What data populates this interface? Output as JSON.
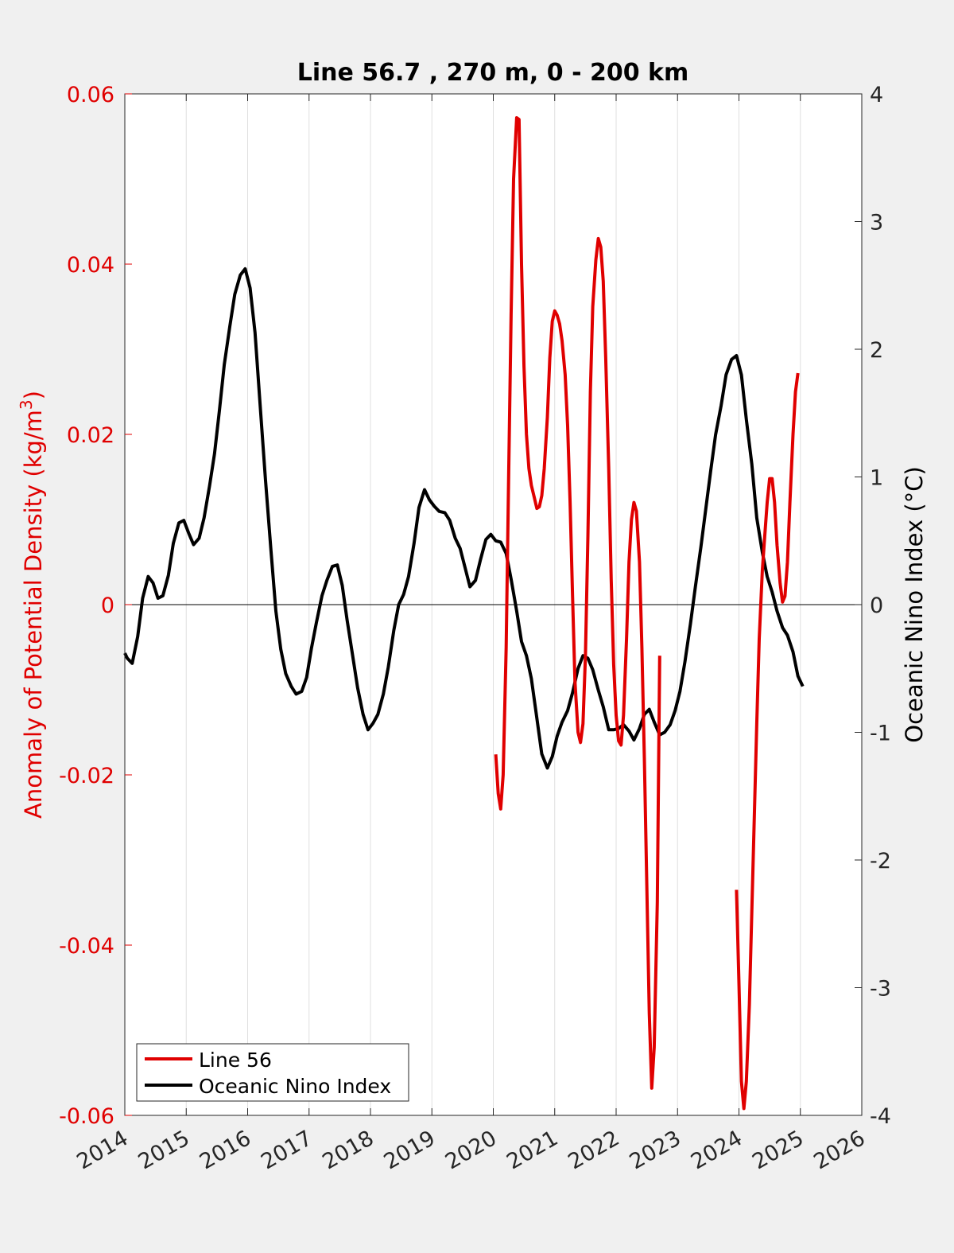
{
  "chart_data": {
    "type": "line",
    "title": "Line 56.7 , 270 m, 0 - 200 km",
    "xlabel": "",
    "ylabel_left": "Anomaly of Potential Density (kg/m",
    "ylabel_left_sup": "3",
    "ylabel_left_close": ")",
    "ylabel_right": "Oceanic Nino Index (°C)",
    "xlim": [
      2014,
      2026
    ],
    "ylim_left": [
      -0.06,
      0.06
    ],
    "ylim_right": [
      -4,
      4
    ],
    "x_ticks": [
      "2014",
      "2015",
      "2016",
      "2017",
      "2018",
      "2019",
      "2020",
      "2021",
      "2022",
      "2023",
      "2024",
      "2025",
      "2026"
    ],
    "y_left_ticks": [
      "-0.06",
      "-0.04",
      "-0.02",
      "0",
      "0.02",
      "0.04",
      "0.06"
    ],
    "y_right_ticks": [
      "-4",
      "-3",
      "-2",
      "-1",
      "0",
      "1",
      "2",
      "3",
      "4"
    ],
    "grid": "vertical",
    "legend_position": "bottom-left",
    "colors": {
      "left_axis": "#e00000",
      "line56": "#e00000",
      "oni": "#000000"
    },
    "series": [
      {
        "name": "Line 56",
        "axis": "left",
        "segments": [
          [
            [
              2020.04,
              -0.0176
            ],
            [
              2020.08,
              -0.0222
            ],
            [
              2020.12,
              -0.024
            ],
            [
              2020.16,
              -0.02
            ],
            [
              2020.21,
              -0.005
            ],
            [
              2020.25,
              0.015
            ],
            [
              2020.29,
              0.034
            ],
            [
              2020.33,
              0.05
            ],
            [
              2020.38,
              0.0572
            ],
            [
              2020.42,
              0.057
            ],
            [
              2020.46,
              0.04
            ],
            [
              2020.5,
              0.028
            ],
            [
              2020.54,
              0.02
            ],
            [
              2020.58,
              0.016
            ],
            [
              2020.62,
              0.014
            ],
            [
              2020.67,
              0.0125
            ],
            [
              2020.71,
              0.0113
            ],
            [
              2020.75,
              0.0115
            ],
            [
              2020.79,
              0.0128
            ],
            [
              2020.83,
              0.016
            ],
            [
              2020.88,
              0.022
            ],
            [
              2020.92,
              0.029
            ],
            [
              2020.96,
              0.0333
            ],
            [
              2021.0,
              0.0345
            ],
            [
              2021.04,
              0.034
            ],
            [
              2021.08,
              0.033
            ],
            [
              2021.12,
              0.031
            ],
            [
              2021.17,
              0.027
            ],
            [
              2021.21,
              0.021
            ],
            [
              2021.25,
              0.012
            ],
            [
              2021.29,
              0.001
            ],
            [
              2021.33,
              -0.009
            ],
            [
              2021.38,
              -0.015
            ],
            [
              2021.42,
              -0.0162
            ],
            [
              2021.46,
              -0.014
            ],
            [
              2021.5,
              -0.006
            ],
            [
              2021.54,
              0.008
            ],
            [
              2021.58,
              0.025
            ],
            [
              2021.62,
              0.035
            ],
            [
              2021.67,
              0.0405
            ],
            [
              2021.71,
              0.043
            ],
            [
              2021.75,
              0.042
            ],
            [
              2021.79,
              0.038
            ],
            [
              2021.83,
              0.029
            ],
            [
              2021.88,
              0.016
            ],
            [
              2021.92,
              0.003
            ],
            [
              2021.96,
              -0.007
            ],
            [
              2022.0,
              -0.013
            ],
            [
              2022.04,
              -0.016
            ],
            [
              2022.08,
              -0.0165
            ],
            [
              2022.12,
              -0.013
            ],
            [
              2022.17,
              -0.004
            ],
            [
              2022.21,
              0.005
            ],
            [
              2022.25,
              0.01
            ],
            [
              2022.29,
              0.012
            ],
            [
              2022.33,
              0.011
            ],
            [
              2022.38,
              0.005
            ],
            [
              2022.42,
              -0.005
            ],
            [
              2022.46,
              -0.018
            ],
            [
              2022.5,
              -0.033
            ],
            [
              2022.54,
              -0.048
            ],
            [
              2022.58,
              -0.0568
            ],
            [
              2022.62,
              -0.052
            ],
            [
              2022.67,
              -0.035
            ],
            [
              2022.71,
              -0.006
            ]
          ],
          [
            [
              2023.96,
              -0.0335
            ],
            [
              2024.0,
              -0.0445
            ],
            [
              2024.04,
              -0.056
            ],
            [
              2024.08,
              -0.0592
            ],
            [
              2024.12,
              -0.056
            ],
            [
              2024.17,
              -0.047
            ],
            [
              2024.21,
              -0.036
            ],
            [
              2024.25,
              -0.025
            ],
            [
              2024.29,
              -0.014
            ],
            [
              2024.33,
              -0.004
            ],
            [
              2024.38,
              0.004
            ],
            [
              2024.42,
              0.008
            ],
            [
              2024.46,
              0.012
            ],
            [
              2024.5,
              0.0148
            ],
            [
              2024.54,
              0.0148
            ],
            [
              2024.58,
              0.012
            ],
            [
              2024.62,
              0.007
            ],
            [
              2024.67,
              0.0025
            ],
            [
              2024.71,
              0.0003
            ],
            [
              2024.75,
              0.001
            ],
            [
              2024.79,
              0.005
            ],
            [
              2024.83,
              0.012
            ],
            [
              2024.88,
              0.02
            ],
            [
              2024.92,
              0.025
            ],
            [
              2024.96,
              0.0272
            ]
          ]
        ]
      },
      {
        "name": "Oceanic Nino Index",
        "axis": "right",
        "segments": [
          [
            [
              2014.0,
              -0.38
            ],
            [
              2014.04,
              -0.42
            ],
            [
              2014.12,
              -0.46
            ],
            [
              2014.21,
              -0.25
            ],
            [
              2014.29,
              0.05
            ],
            [
              2014.38,
              0.22
            ],
            [
              2014.46,
              0.17
            ],
            [
              2014.54,
              0.05
            ],
            [
              2014.62,
              0.07
            ],
            [
              2014.71,
              0.23
            ],
            [
              2014.79,
              0.48
            ],
            [
              2014.88,
              0.64
            ],
            [
              2014.96,
              0.66
            ],
            [
              2015.04,
              0.56
            ],
            [
              2015.12,
              0.47
            ],
            [
              2015.21,
              0.52
            ],
            [
              2015.29,
              0.68
            ],
            [
              2015.38,
              0.93
            ],
            [
              2015.46,
              1.18
            ],
            [
              2015.54,
              1.52
            ],
            [
              2015.62,
              1.88
            ],
            [
              2015.71,
              2.18
            ],
            [
              2015.79,
              2.43
            ],
            [
              2015.88,
              2.58
            ],
            [
              2015.96,
              2.63
            ],
            [
              2016.04,
              2.48
            ],
            [
              2016.12,
              2.13
            ],
            [
              2016.21,
              1.52
            ],
            [
              2016.29,
              0.98
            ],
            [
              2016.38,
              0.42
            ],
            [
              2016.46,
              -0.05
            ],
            [
              2016.54,
              -0.35
            ],
            [
              2016.62,
              -0.54
            ],
            [
              2016.71,
              -0.64
            ],
            [
              2016.79,
              -0.7
            ],
            [
              2016.88,
              -0.68
            ],
            [
              2016.96,
              -0.57
            ],
            [
              2017.04,
              -0.34
            ],
            [
              2017.12,
              -0.14
            ],
            [
              2017.21,
              0.07
            ],
            [
              2017.29,
              0.19
            ],
            [
              2017.38,
              0.3
            ],
            [
              2017.46,
              0.31
            ],
            [
              2017.54,
              0.15
            ],
            [
              2017.62,
              -0.12
            ],
            [
              2017.71,
              -0.4
            ],
            [
              2017.79,
              -0.65
            ],
            [
              2017.88,
              -0.86
            ],
            [
              2017.96,
              -0.98
            ],
            [
              2018.04,
              -0.93
            ],
            [
              2018.12,
              -0.86
            ],
            [
              2018.21,
              -0.7
            ],
            [
              2018.29,
              -0.49
            ],
            [
              2018.38,
              -0.2
            ],
            [
              2018.46,
              0.0
            ],
            [
              2018.54,
              0.08
            ],
            [
              2018.62,
              0.22
            ],
            [
              2018.71,
              0.48
            ],
            [
              2018.79,
              0.76
            ],
            [
              2018.88,
              0.9
            ],
            [
              2018.96,
              0.82
            ],
            [
              2019.04,
              0.77
            ],
            [
              2019.12,
              0.73
            ],
            [
              2019.21,
              0.72
            ],
            [
              2019.29,
              0.66
            ],
            [
              2019.38,
              0.52
            ],
            [
              2019.46,
              0.44
            ],
            [
              2019.54,
              0.29
            ],
            [
              2019.62,
              0.14
            ],
            [
              2019.71,
              0.19
            ],
            [
              2019.79,
              0.35
            ],
            [
              2019.88,
              0.51
            ],
            [
              2019.96,
              0.55
            ],
            [
              2020.04,
              0.5
            ],
            [
              2020.12,
              0.49
            ],
            [
              2020.21,
              0.4
            ],
            [
              2020.29,
              0.2
            ],
            [
              2020.38,
              -0.05
            ],
            [
              2020.46,
              -0.29
            ],
            [
              2020.54,
              -0.4
            ],
            [
              2020.62,
              -0.58
            ],
            [
              2020.71,
              -0.89
            ],
            [
              2020.79,
              -1.17
            ],
            [
              2020.88,
              -1.28
            ],
            [
              2020.96,
              -1.19
            ],
            [
              2021.04,
              -1.03
            ],
            [
              2021.12,
              -0.92
            ],
            [
              2021.21,
              -0.83
            ],
            [
              2021.29,
              -0.69
            ],
            [
              2021.38,
              -0.5
            ],
            [
              2021.46,
              -0.4
            ],
            [
              2021.54,
              -0.42
            ],
            [
              2021.62,
              -0.51
            ],
            [
              2021.71,
              -0.67
            ],
            [
              2021.79,
              -0.8
            ],
            [
              2021.88,
              -0.98
            ],
            [
              2021.96,
              -0.98
            ],
            [
              2022.04,
              -0.97
            ],
            [
              2022.12,
              -0.94
            ],
            [
              2022.21,
              -0.99
            ],
            [
              2022.29,
              -1.06
            ],
            [
              2022.38,
              -0.97
            ],
            [
              2022.46,
              -0.86
            ],
            [
              2022.54,
              -0.82
            ],
            [
              2022.62,
              -0.92
            ],
            [
              2022.71,
              -1.02
            ],
            [
              2022.79,
              -1.0
            ],
            [
              2022.88,
              -0.94
            ],
            [
              2022.96,
              -0.83
            ],
            [
              2023.04,
              -0.68
            ],
            [
              2023.12,
              -0.45
            ],
            [
              2023.21,
              -0.15
            ],
            [
              2023.29,
              0.14
            ],
            [
              2023.38,
              0.45
            ],
            [
              2023.46,
              0.75
            ],
            [
              2023.54,
              1.05
            ],
            [
              2023.62,
              1.33
            ],
            [
              2023.71,
              1.56
            ],
            [
              2023.79,
              1.8
            ],
            [
              2023.88,
              1.92
            ],
            [
              2023.96,
              1.95
            ],
            [
              2024.04,
              1.8
            ],
            [
              2024.12,
              1.45
            ],
            [
              2024.21,
              1.1
            ],
            [
              2024.29,
              0.68
            ],
            [
              2024.38,
              0.41
            ],
            [
              2024.46,
              0.22
            ],
            [
              2024.54,
              0.1
            ],
            [
              2024.62,
              -0.05
            ],
            [
              2024.71,
              -0.18
            ],
            [
              2024.79,
              -0.24
            ],
            [
              2024.88,
              -0.37
            ],
            [
              2024.96,
              -0.56
            ],
            [
              2025.04,
              -0.64
            ]
          ]
        ]
      }
    ]
  }
}
